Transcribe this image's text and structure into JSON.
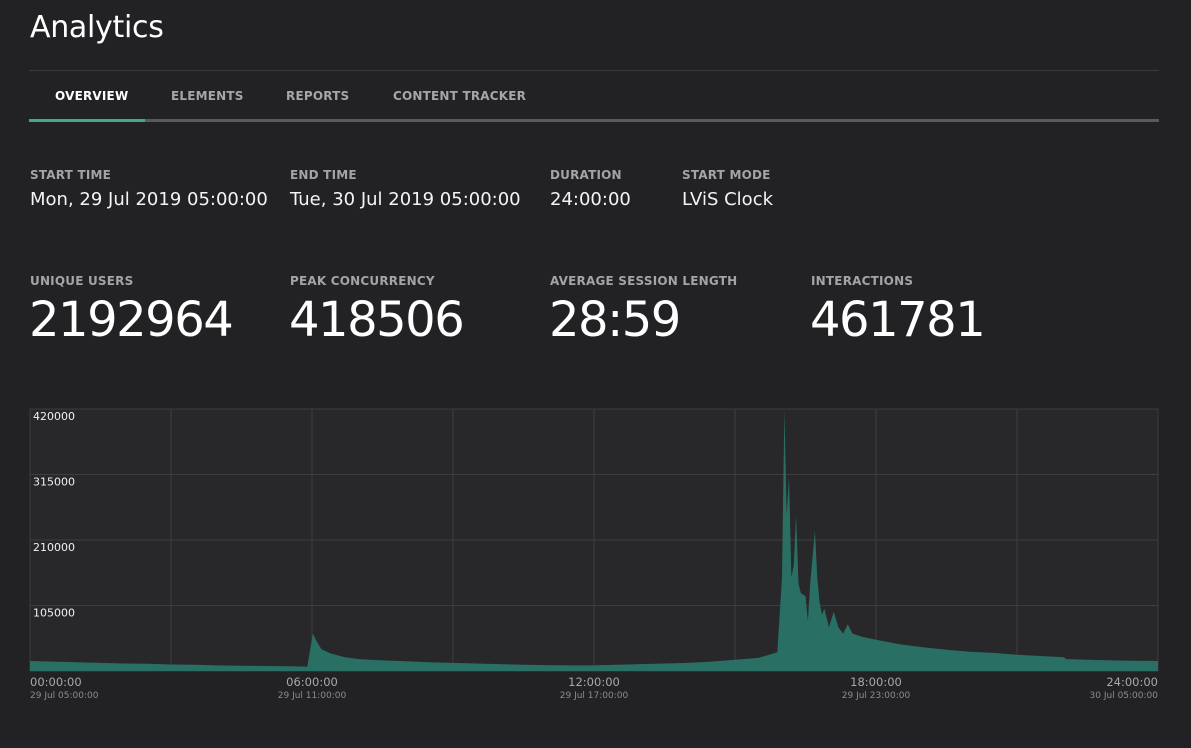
{
  "app": {
    "title": "Analytics"
  },
  "tabs": [
    {
      "label": "OVERVIEW",
      "active": true
    },
    {
      "label": "ELEMENTS",
      "active": false
    },
    {
      "label": "REPORTS",
      "active": false
    },
    {
      "label": "CONTENT TRACKER",
      "active": false
    }
  ],
  "info": {
    "start_time": {
      "label": "START TIME",
      "value": "Mon, 29 Jul 2019 05:00:00"
    },
    "end_time": {
      "label": "END TIME",
      "value": "Tue, 30 Jul 2019 05:00:00"
    },
    "duration": {
      "label": "DURATION",
      "value": "24:00:00"
    },
    "start_mode": {
      "label": "START MODE",
      "value": "LViS Clock"
    }
  },
  "stats": {
    "unique_users": {
      "label": "UNIQUE USERS",
      "value": "2192964"
    },
    "peak_concurrency": {
      "label": "PEAK CONCURRENCY",
      "value": "418506"
    },
    "avg_session": {
      "label": "AVERAGE SESSION LENGTH",
      "value": "28:59"
    },
    "interactions": {
      "label": "INTERACTIONS",
      "value": "461781"
    }
  },
  "colors": {
    "accent": "#3fa88d",
    "area_fill": "#2a6f63",
    "background": "#222225"
  },
  "chart_data": {
    "type": "area",
    "title": "",
    "xlabel": "",
    "ylabel": "",
    "ylim": [
      0,
      420000
    ],
    "xlim": [
      0,
      24
    ],
    "grid": true,
    "y_ticks": [
      "420000",
      "315000",
      "210000",
      "105000"
    ],
    "y_tick_values": [
      420000,
      315000,
      210000,
      105000
    ],
    "x_ticks": [
      {
        "value": 0,
        "label": "00:00:00",
        "sub": "29 Jul 05:00:00"
      },
      {
        "value": 6,
        "label": "06:00:00",
        "sub": "29 Jul 11:00:00"
      },
      {
        "value": 12,
        "label": "12:00:00",
        "sub": "29 Jul 17:00:00"
      },
      {
        "value": 18,
        "label": "18:00:00",
        "sub": "29 Jul 23:00:00"
      },
      {
        "value": 24,
        "label": "24:00:00",
        "sub": "30 Jul 05:00:00"
      }
    ],
    "series": [
      {
        "x": [
          0,
          0.5,
          1,
          1.5,
          2,
          2.5,
          3,
          3.5,
          4,
          4.5,
          5,
          5.5,
          5.9,
          6.02,
          6.08,
          6.2,
          6.4,
          6.7,
          7,
          7.5,
          8,
          8.5,
          9,
          9.5,
          10,
          10.5,
          11,
          11.5,
          12,
          12.5,
          13,
          13.5,
          14,
          14.5,
          15,
          15.5,
          15.9,
          16,
          16.05,
          16.1,
          16.15,
          16.2,
          16.25,
          16.3,
          16.35,
          16.4,
          16.5,
          16.55,
          16.6,
          16.7,
          16.75,
          16.8,
          16.85,
          16.9,
          17,
          17.1,
          17.2,
          17.3,
          17.4,
          17.5,
          17.7,
          18,
          18.5,
          19,
          19.5,
          20,
          20.5,
          21,
          21.5,
          22,
          22.05,
          22.5,
          23,
          23.5,
          24
        ],
        "values": [
          16000,
          15000,
          14000,
          13000,
          12000,
          11500,
          10500,
          10000,
          9000,
          8500,
          8000,
          7500,
          7000,
          60000,
          50000,
          35000,
          28000,
          22000,
          19000,
          17000,
          15500,
          14000,
          13000,
          12000,
          11000,
          10000,
          9500,
          9000,
          9000,
          10000,
          11000,
          12000,
          13000,
          15000,
          18000,
          21000,
          30000,
          150000,
          420000,
          250000,
          310000,
          150000,
          170000,
          250000,
          140000,
          125000,
          120000,
          80000,
          140000,
          225000,
          150000,
          110000,
          90000,
          100000,
          70000,
          95000,
          70000,
          60000,
          75000,
          60000,
          55000,
          50000,
          43000,
          38000,
          34000,
          31000,
          29000,
          26000,
          24000,
          22000,
          19000,
          18000,
          17000,
          16500,
          16000
        ]
      }
    ]
  }
}
